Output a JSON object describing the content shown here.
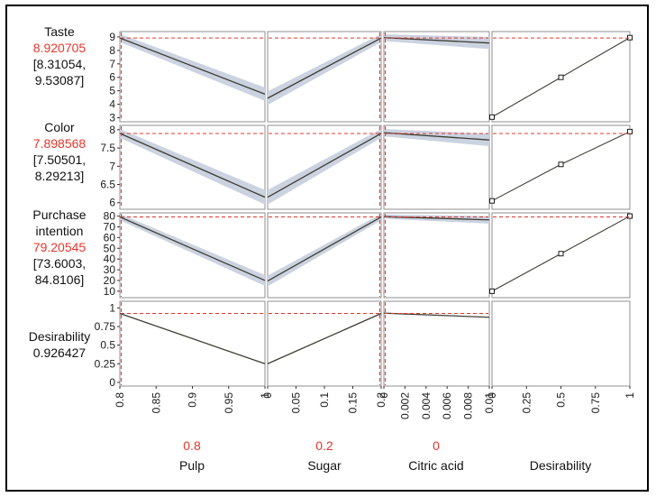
{
  "colors": {
    "trace": "#3f3e34",
    "band": "#cbd2e0",
    "reference": "#e5352b",
    "frame": "#8f8f8f",
    "tick": "#1a1a1a",
    "marker_fill": "#ffffff",
    "marker_stroke": "#1a1a1a"
  },
  "chart_data": {
    "type": "line",
    "subtype": "prediction-profiler-desirability",
    "legend": "none",
    "grid": "off",
    "factors": [
      {
        "name": "Pulp",
        "current": "0.8",
        "current_value": 0.8,
        "min": 0.8,
        "max": 1,
        "ticks": [
          0.8,
          0.85,
          0.9,
          0.95,
          1
        ],
        "tick_labels": [
          "0.8",
          "0.85",
          "0.9",
          "0.95",
          "1"
        ]
      },
      {
        "name": "Sugar",
        "current": "0.2",
        "current_value": 0.2,
        "min": 0,
        "max": 0.2,
        "ticks": [
          0,
          0.05,
          0.1,
          0.15,
          0.2
        ],
        "tick_labels": [
          "0",
          "0.05",
          "0.1",
          "0.15",
          "0.2"
        ]
      },
      {
        "name": "Citric acid",
        "current": "0",
        "current_value": 0,
        "min": 0,
        "max": 0.01,
        "ticks": [
          0,
          0.002,
          0.004,
          0.006,
          0.008,
          0.01
        ],
        "tick_labels": [
          "0",
          "0.002",
          "0.004",
          "0.006",
          "0.008",
          "0.01"
        ]
      },
      {
        "name": "Desirability",
        "current": "",
        "current_value": null,
        "min": 0,
        "max": 1,
        "ticks": [
          0,
          0.25,
          0.5,
          0.75,
          1
        ],
        "tick_labels": [
          "0",
          "0.25",
          "0.5",
          "0.75",
          "1"
        ]
      }
    ],
    "responses": [
      {
        "label": "Taste",
        "value_text": "8.920705",
        "predicted": 8.920705,
        "ci_lines": [
          "[8.31054,",
          "9.53087]"
        ],
        "ymin": 2.7,
        "ymax": 9.4,
        "yticks": [
          3,
          4,
          5,
          6,
          7,
          8,
          9
        ],
        "ytick_labels": [
          "3",
          "4",
          "5",
          "6",
          "7",
          "8",
          "9"
        ],
        "traces": [
          {
            "x": [
              0.8,
              1
            ],
            "y": [
              8.92,
              4.75
            ],
            "band": [
              0.3,
              0.5
            ]
          },
          {
            "x": [
              0,
              0.2
            ],
            "y": [
              4.45,
              8.92
            ],
            "band": [
              0.5,
              0.3
            ]
          },
          {
            "x": [
              0,
              0.01
            ],
            "y": [
              8.95,
              8.55
            ],
            "band": [
              0.25,
              0.45
            ]
          }
        ],
        "desirability_curve": {
          "x": [
            0,
            0.5,
            1
          ],
          "y": [
            3.05,
            6.0,
            8.95
          ]
        }
      },
      {
        "label": "Color",
        "value_text": "7.898568",
        "predicted": 7.898568,
        "ci_lines": [
          "[7.50501,",
          "8.29213]"
        ],
        "ymin": 5.82,
        "ymax": 8.12,
        "yticks": [
          6,
          6.5,
          7,
          7.5,
          8
        ],
        "ytick_labels": [
          "6",
          "6.5",
          "7",
          "7.5",
          "8"
        ],
        "traces": [
          {
            "x": [
              0.8,
              1
            ],
            "y": [
              7.9,
              6.15
            ],
            "band": [
              0.12,
              0.2
            ]
          },
          {
            "x": [
              0,
              0.2
            ],
            "y": [
              6.15,
              7.9
            ],
            "band": [
              0.2,
              0.12
            ]
          },
          {
            "x": [
              0,
              0.01
            ],
            "y": [
              7.92,
              7.72
            ],
            "band": [
              0.1,
              0.17
            ]
          }
        ],
        "desirability_curve": {
          "x": [
            0,
            0.5,
            1
          ],
          "y": [
            6.05,
            7.05,
            7.95
          ]
        }
      },
      {
        "label": "Purchase intention",
        "value_text": "79.20545",
        "predicted": 79.20545,
        "ci_lines": [
          "[73.6003,",
          "84.8106]"
        ],
        "ymin": 4,
        "ymax": 83,
        "yticks": [
          10,
          20,
          30,
          40,
          50,
          60,
          70,
          80
        ],
        "ytick_labels": [
          "10",
          "20",
          "30",
          "40",
          "50",
          "60",
          "70",
          "80"
        ],
        "traces": [
          {
            "x": [
              0.8,
              1
            ],
            "y": [
              79.2,
              20
            ],
            "band": [
              3,
              5
            ]
          },
          {
            "x": [
              0,
              0.2
            ],
            "y": [
              19.5,
              79.2
            ],
            "band": [
              5,
              3
            ]
          },
          {
            "x": [
              0,
              0.01
            ],
            "y": [
              79.5,
              76.5
            ],
            "band": [
              2,
              3.5
            ]
          }
        ],
        "desirability_curve": {
          "x": [
            0,
            0.5,
            1
          ],
          "y": [
            10,
            45,
            80
          ]
        }
      },
      {
        "label": "Desirability",
        "value_text": "0.926427",
        "predicted": 0.926427,
        "ci_lines": [],
        "ymin": -0.05,
        "ymax": 1.09,
        "yticks": [
          0,
          0.25,
          0.5,
          0.75,
          1
        ],
        "ytick_labels": [
          "0",
          "0.25",
          "0.5",
          "0.75",
          "1"
        ],
        "traces": [
          {
            "x": [
              0.8,
              1
            ],
            "y": [
              0.926,
              0.25
            ]
          },
          {
            "x": [
              0,
              0.2
            ],
            "y": [
              0.25,
              0.926
            ]
          },
          {
            "x": [
              0,
              0.01
            ],
            "y": [
              0.93,
              0.875
            ]
          }
        ],
        "desirability_curve": null
      }
    ]
  }
}
